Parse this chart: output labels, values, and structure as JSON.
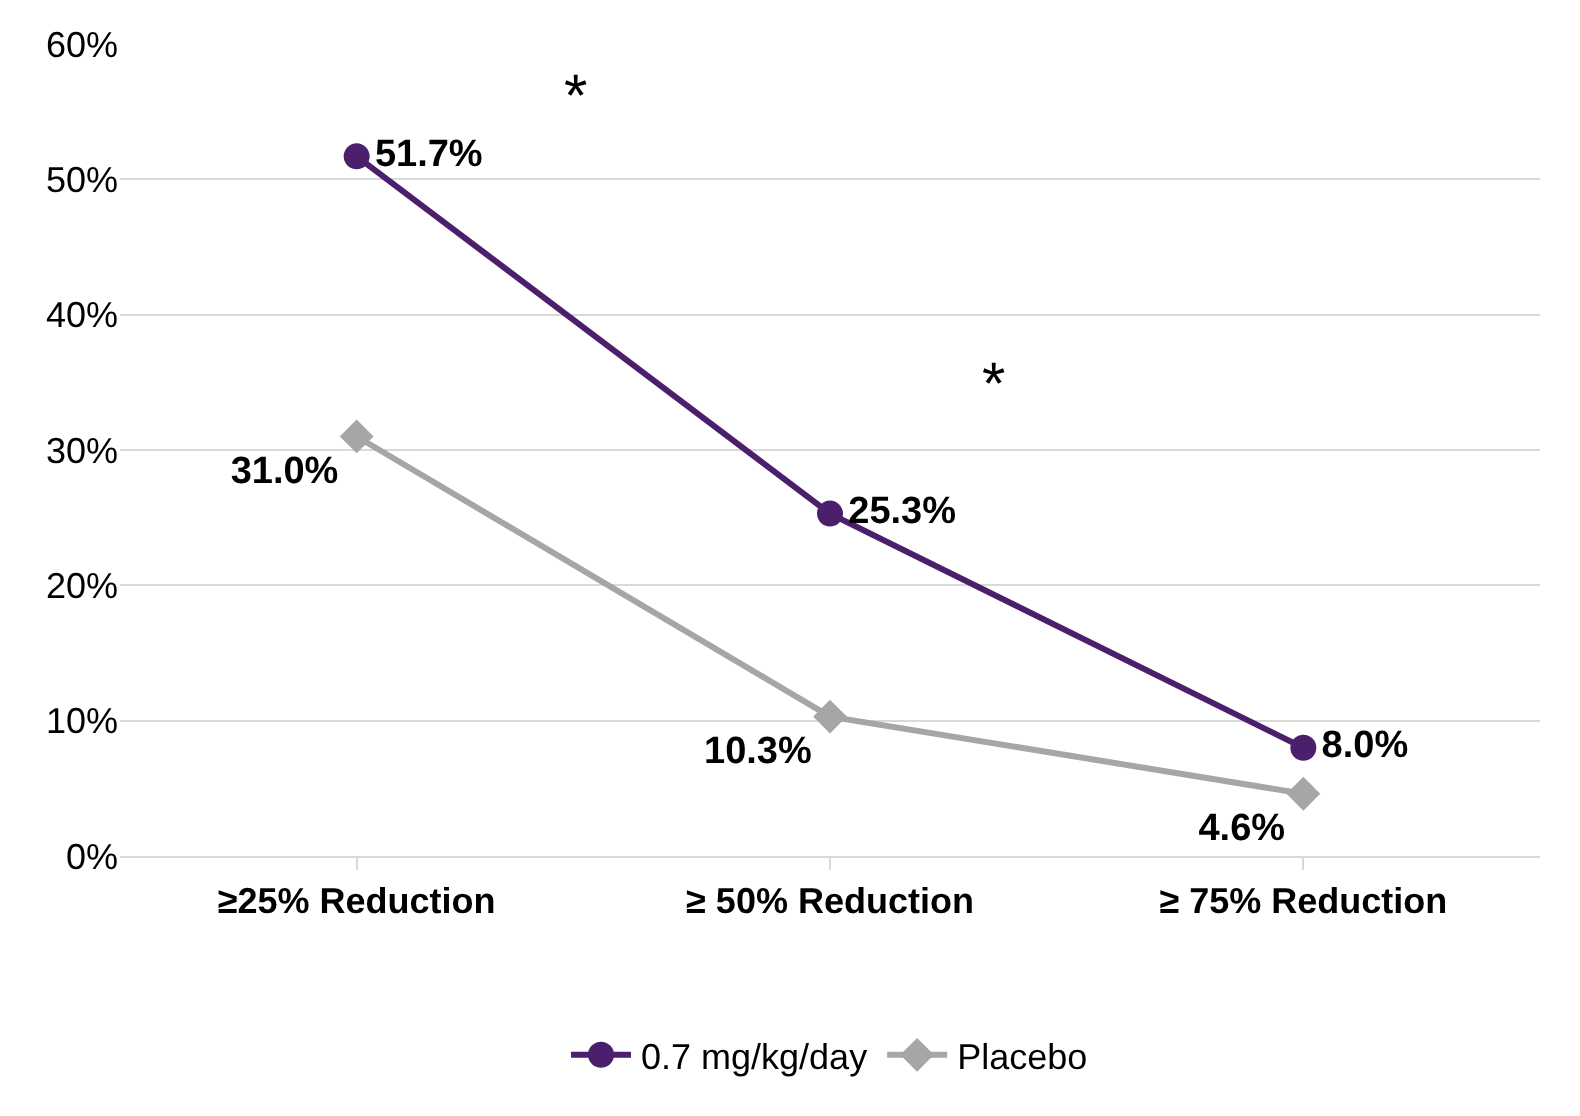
{
  "chart_data": {
    "type": "line",
    "categories": [
      "≥25% Reduction",
      "≥ 50% Reduction",
      "≥ 75% Reduction"
    ],
    "series": [
      {
        "name": "0.7 mg/kg/day",
        "color": "#4b1f6b",
        "marker": "circle",
        "values": [
          51.7,
          25.3,
          8.0
        ],
        "value_labels": [
          "51.7%",
          "25.3%",
          "8.0%"
        ]
      },
      {
        "name": "Placebo",
        "color": "#a6a6a6",
        "marker": "diamond",
        "values": [
          31.0,
          10.3,
          4.6
        ],
        "value_labels": [
          "31.0%",
          "10.3%",
          "4.6%"
        ]
      }
    ],
    "ylim": [
      0,
      60
    ],
    "yticks": [
      {
        "value": 0,
        "label": "0%"
      },
      {
        "value": 10,
        "label": "10%"
      },
      {
        "value": 20,
        "label": "20%"
      },
      {
        "value": 30,
        "label": "30%"
      },
      {
        "value": 40,
        "label": "40%"
      },
      {
        "value": 50,
        "label": "50%"
      },
      {
        "value": 60,
        "label": "60%"
      }
    ],
    "annotations": [
      "*",
      "*"
    ],
    "grid": "y",
    "legend": "bottom",
    "line_style": "solid"
  }
}
